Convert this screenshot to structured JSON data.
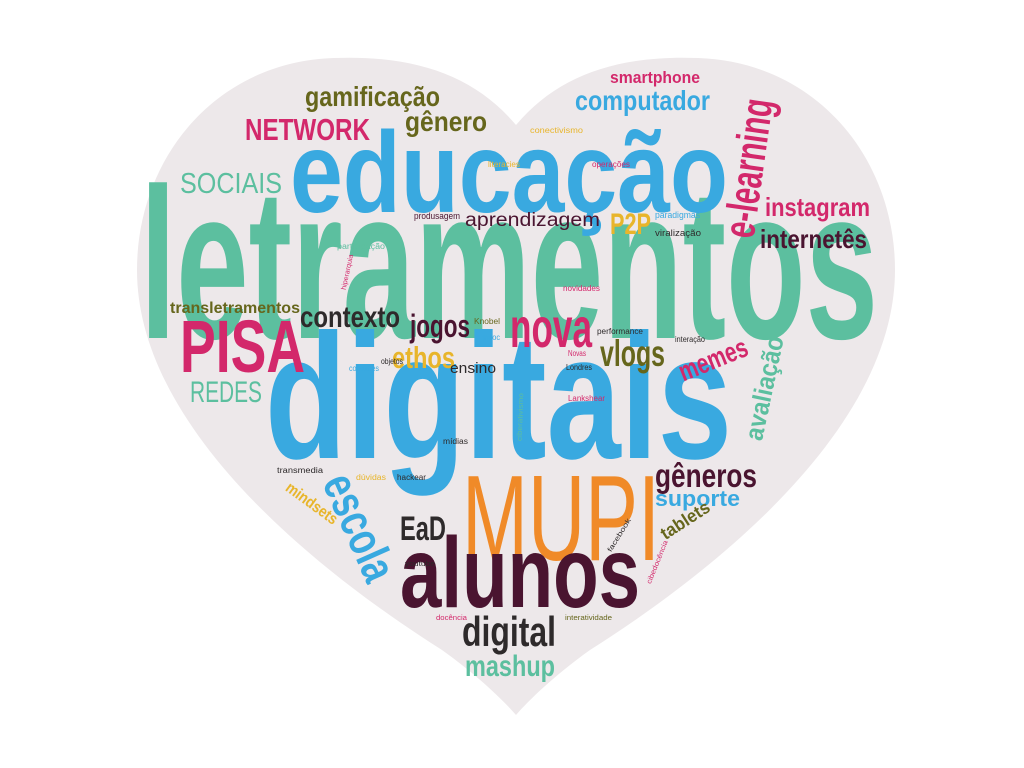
{
  "heart": {
    "fill": "#ede8ea"
  },
  "words": [
    {
      "text": "letramentos",
      "color": "#5cbf9f"
    },
    {
      "text": "educação",
      "color": "#39a9e0"
    },
    {
      "text": "digitais",
      "color": "#39a9e0"
    },
    {
      "text": "MUPI",
      "color": "#f08a28"
    },
    {
      "text": "alunos",
      "color": "#4a1430"
    },
    {
      "text": "PISA",
      "color": "#d3286b"
    },
    {
      "text": "nova",
      "color": "#d3286b"
    },
    {
      "text": "digital",
      "color": "#2e2a2b"
    },
    {
      "text": "mashup",
      "color": "#5cbf9f"
    },
    {
      "text": "escola",
      "color": "#39a9e0"
    },
    {
      "text": "EaD",
      "color": "#2e2a2b"
    },
    {
      "text": "gêneros",
      "color": "#4a1430"
    },
    {
      "text": "suporte",
      "color": "#39a9e0"
    },
    {
      "text": "tablets",
      "color": "#66661c"
    },
    {
      "text": "avaliação",
      "color": "#5cbf9f"
    },
    {
      "text": "memes",
      "color": "#d3286b"
    },
    {
      "text": "vlogs",
      "color": "#66661c"
    },
    {
      "text": "ethos",
      "color": "#e8b52b"
    },
    {
      "text": "jogos",
      "color": "#4a1430"
    },
    {
      "text": "contexto",
      "color": "#2e2a2b"
    },
    {
      "text": "ensino",
      "color": "#2e2a2b"
    },
    {
      "text": "transletramentos",
      "color": "#66661c"
    },
    {
      "text": "REDES",
      "color": "#5cbf9f"
    },
    {
      "text": "SOCIAIS",
      "color": "#5cbf9f"
    },
    {
      "text": "NETWORK",
      "color": "#d3286b"
    },
    {
      "text": "gamificação",
      "color": "#66661c"
    },
    {
      "text": "gênero",
      "color": "#66661c"
    },
    {
      "text": "computador",
      "color": "#39a9e0"
    },
    {
      "text": "smartphone",
      "color": "#d3286b"
    },
    {
      "text": "e-learning",
      "color": "#d3286b"
    },
    {
      "text": "instagram",
      "color": "#d3286b"
    },
    {
      "text": "internetês",
      "color": "#4a1430"
    },
    {
      "text": "P2P",
      "color": "#e8b52b"
    },
    {
      "text": "aprendizagem",
      "color": "#4a1430"
    },
    {
      "text": "produsagem",
      "color": "#4a1430"
    },
    {
      "text": "paradigmas",
      "color": "#39a9e0"
    },
    {
      "text": "viralização",
      "color": "#2e2a2b"
    },
    {
      "text": "participação",
      "color": "#5cbf9f"
    },
    {
      "text": "hiperarquia",
      "color": "#d3286b"
    },
    {
      "text": "conectivismo",
      "color": "#e8b52b"
    },
    {
      "text": "literacies",
      "color": "#e8b52b"
    },
    {
      "text": "operações",
      "color": "#d3286b"
    },
    {
      "text": "novidades",
      "color": "#d3286b"
    },
    {
      "text": "Knobel",
      "color": "#66661c"
    },
    {
      "text": "mooc",
      "color": "#39a9e0"
    },
    {
      "text": "performance",
      "color": "#2e2a2b"
    },
    {
      "text": "interação",
      "color": "#2e2a2b"
    },
    {
      "text": "Novas",
      "color": "#d3286b"
    },
    {
      "text": "Londres",
      "color": "#2e2a2b"
    },
    {
      "text": "objetos",
      "color": "#2e2a2b"
    },
    {
      "text": "conexões",
      "color": "#39a9e0"
    },
    {
      "text": "Lankshear",
      "color": "#d3286b"
    },
    {
      "text": "ciberativismo",
      "color": "#5cbf9f"
    },
    {
      "text": "mídias",
      "color": "#2e2a2b"
    },
    {
      "text": "transmedia",
      "color": "#2e2a2b"
    },
    {
      "text": "dúvidas",
      "color": "#e8b52b"
    },
    {
      "text": "hackear",
      "color": "#2e2a2b"
    },
    {
      "text": "mindsets",
      "color": "#e8b52b"
    },
    {
      "text": "youtube",
      "color": "#2e2a2b"
    },
    {
      "text": "facebook",
      "color": "#2e2a2b"
    },
    {
      "text": "cibedocência",
      "color": "#d3286b"
    },
    {
      "text": "docência",
      "color": "#d3286b"
    },
    {
      "text": "interatividade",
      "color": "#66661c"
    }
  ]
}
